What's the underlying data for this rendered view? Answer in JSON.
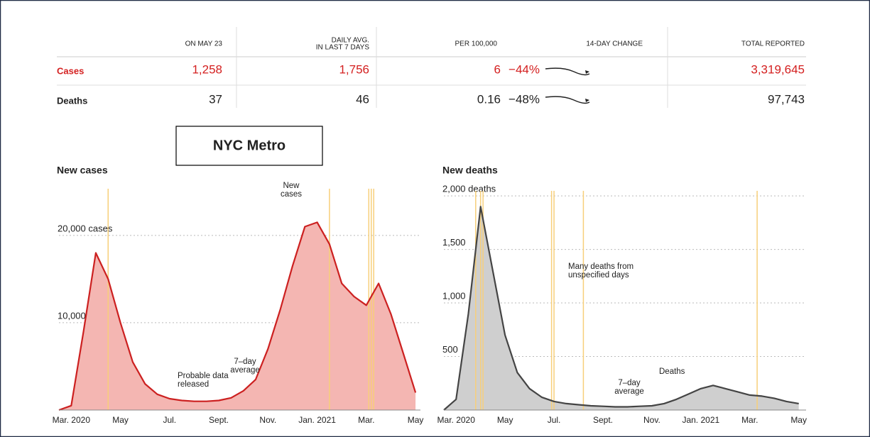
{
  "table": {
    "headers": [
      [
        "ON MAY 23"
      ],
      [
        "DAILY AVG.",
        "IN LAST 7 DAYS"
      ],
      [
        "PER 100,000"
      ],
      [
        "14-DAY CHANGE"
      ],
      [
        "TOTAL REPORTED"
      ]
    ],
    "rows": [
      [
        "Cases",
        "1,258",
        "1,756",
        "6",
        "−44%",
        "3,319,645"
      ],
      [
        "Deaths",
        "37",
        "46",
        "0.16",
        "−48%",
        "97,743"
      ]
    ]
  },
  "label": "NYC Metro",
  "chart_data": [
    {
      "type": "area",
      "title": "New cases",
      "x": [
        -0.5,
        0,
        0.5,
        1,
        1.5,
        2,
        2.5,
        3,
        3.5,
        4,
        4.5,
        5,
        5.5,
        6,
        6.5,
        7,
        7.5,
        8,
        8.5,
        9,
        9.5,
        10,
        10.5,
        11,
        11.5,
        12,
        12.5,
        13,
        13.5,
        14
      ],
      "series": [
        {
          "color": "#cc2020",
          "fill": "#f4b6b2",
          "values": [
            0,
            500,
            9000,
            18000,
            15000,
            10000,
            5500,
            3000,
            1800,
            1300,
            1100,
            1000,
            1000,
            1100,
            1400,
            2200,
            3500,
            7000,
            11500,
            16500,
            21000,
            21500,
            19000,
            14500,
            13000,
            12000,
            14500,
            11000,
            6500,
            2000
          ]
        }
      ],
      "xlim": [
        -0.5,
        14.2
      ],
      "xticks": [
        {
          "value": 0,
          "label": "Mar. 2020"
        },
        {
          "value": 2,
          "label": "May"
        },
        {
          "value": 4,
          "label": "Jul."
        },
        {
          "value": 6,
          "label": "Sept."
        },
        {
          "value": 8,
          "label": "Nov."
        },
        {
          "value": 10,
          "label": "Jan. 2021"
        },
        {
          "value": 12,
          "label": "Mar."
        },
        {
          "value": 14,
          "label": "May"
        }
      ],
      "ylim": [
        0,
        26000
      ],
      "yticks": [
        {
          "value": 10000,
          "label": "10,000"
        },
        {
          "value": 20000,
          "label": "20,000 cases"
        }
      ],
      "grid": true,
      "annotations": [
        [
          "New",
          "cases"
        ],
        [
          "Probable data",
          "released"
        ],
        [
          "7–day",
          "average"
        ]
      ]
    },
    {
      "type": "area",
      "title": "New deaths",
      "x": [
        -0.5,
        0,
        0.5,
        1,
        1.5,
        2,
        2.5,
        3,
        3.5,
        4,
        4.5,
        5,
        5.5,
        6,
        6.5,
        7,
        7.5,
        8,
        8.5,
        9,
        9.5,
        10,
        10.5,
        11,
        11.5,
        12,
        12.5,
        13,
        13.5,
        14
      ],
      "series": [
        {
          "color": "#444444",
          "fill": "#cfcfcf",
          "values": [
            0,
            100,
            900,
            1900,
            1300,
            700,
            350,
            200,
            120,
            80,
            60,
            50,
            40,
            35,
            30,
            30,
            35,
            40,
            60,
            100,
            150,
            200,
            230,
            200,
            170,
            140,
            130,
            110,
            80,
            60
          ]
        }
      ],
      "xlim": [
        -0.5,
        14.3
      ],
      "xticks": [
        {
          "value": 0,
          "label": "Mar. 2020"
        },
        {
          "value": 2,
          "label": "May"
        },
        {
          "value": 4,
          "label": "Jul."
        },
        {
          "value": 6,
          "label": "Sept."
        },
        {
          "value": 8,
          "label": "Nov."
        },
        {
          "value": 10,
          "label": "Jan. 2021"
        },
        {
          "value": 12,
          "label": "Mar."
        },
        {
          "value": 14,
          "label": "May"
        }
      ],
      "ylim": [
        0,
        2100
      ],
      "yticks": [
        500,
        {
          "value": 1000,
          "label": "1,000"
        },
        {
          "value": 1500,
          "label": "1,500"
        },
        {
          "value": 2000,
          "label": "2,000 deaths"
        }
      ],
      "grid": true,
      "annotations": [
        [
          "Many deaths from",
          "unspecified days"
        ],
        [
          "7–day",
          "average"
        ],
        [
          "Deaths"
        ]
      ]
    }
  ]
}
